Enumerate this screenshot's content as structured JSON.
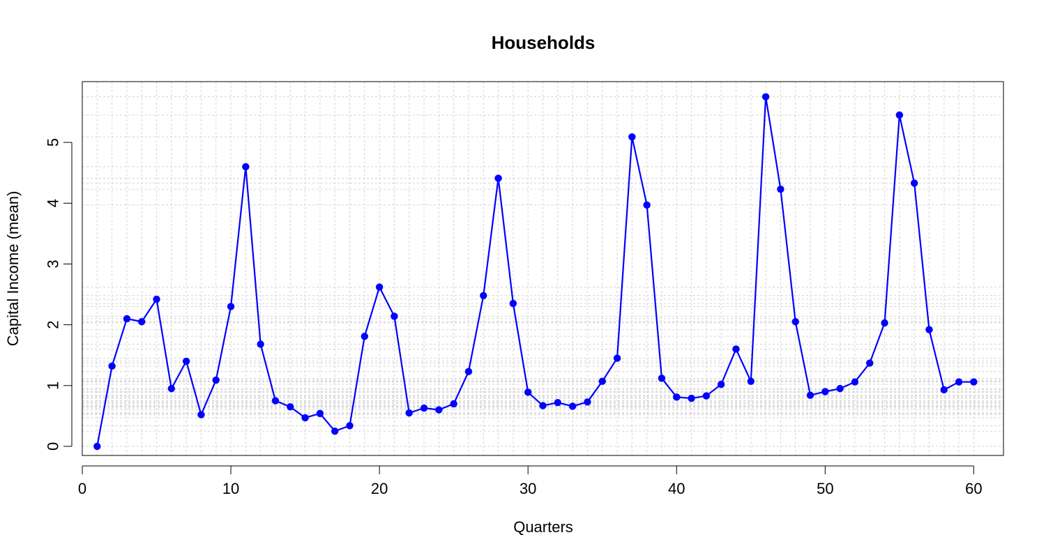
{
  "chart_data": {
    "type": "line",
    "title": "Households",
    "xlabel": "Quarters",
    "ylabel": "Capital Income (mean)",
    "xlim": [
      0,
      62
    ],
    "ylim": [
      -0.15,
      6.0
    ],
    "x_ticks": [
      0,
      10,
      20,
      30,
      40,
      50,
      60
    ],
    "y_ticks": [
      0,
      1,
      2,
      3,
      4,
      5
    ],
    "grid": true,
    "series_color": "#0000ff",
    "grid_color": "#d3d3d3",
    "series": [
      {
        "x": [
          1,
          2,
          3,
          4,
          5,
          6,
          7,
          8,
          9,
          10,
          11,
          12,
          13,
          14,
          15,
          16,
          17,
          18,
          19,
          20,
          21,
          22,
          23,
          24,
          25,
          26,
          27,
          28,
          29,
          30,
          31,
          32,
          33,
          34,
          35,
          36,
          37,
          38,
          39,
          40,
          41,
          42,
          43,
          44,
          45,
          46,
          47,
          48,
          49,
          50,
          51,
          52,
          53,
          54,
          55,
          56,
          57,
          58,
          59,
          60
        ],
        "values": [
          0.0,
          1.32,
          2.1,
          2.05,
          2.42,
          0.95,
          1.4,
          0.52,
          1.09,
          2.3,
          4.6,
          1.68,
          0.75,
          0.65,
          0.47,
          0.54,
          0.25,
          0.34,
          1.81,
          2.62,
          2.14,
          0.55,
          0.63,
          0.6,
          0.7,
          1.23,
          2.48,
          4.41,
          2.35,
          0.89,
          0.67,
          0.72,
          0.66,
          0.73,
          1.07,
          1.45,
          5.09,
          3.97,
          1.12,
          0.81,
          0.79,
          0.83,
          1.02,
          1.6,
          1.07,
          5.75,
          4.23,
          2.05,
          0.84,
          0.9,
          0.95,
          1.06,
          1.37,
          2.03,
          5.45,
          4.33,
          1.92,
          0.93,
          1.06,
          1.06
        ]
      }
    ]
  }
}
